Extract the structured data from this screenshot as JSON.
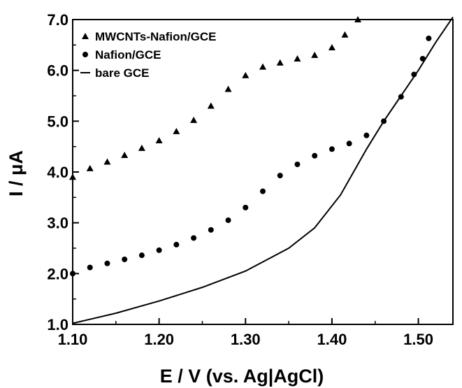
{
  "chart_data": {
    "type": "scatter",
    "title": "",
    "xlabel": "E / V (vs. Ag|AgCl)",
    "ylabel": "I / μA",
    "xlim": [
      1.1,
      1.54
    ],
    "ylim": [
      1.0,
      7.0
    ],
    "xticks": [
      "1.10",
      "1.20",
      "1.30",
      "1.40",
      "1.50"
    ],
    "yticks": [
      "1.0",
      "2.0",
      "3.0",
      "4.0",
      "5.0",
      "6.0",
      "7.0"
    ],
    "grid": false,
    "legend_position": "top-left",
    "series": [
      {
        "name": "MWCNTs-Nafion/GCE",
        "marker": "triangle",
        "points": [
          [
            1.1,
            3.9
          ],
          [
            1.12,
            4.07
          ],
          [
            1.14,
            4.2
          ],
          [
            1.16,
            4.33
          ],
          [
            1.18,
            4.47
          ],
          [
            1.2,
            4.62
          ],
          [
            1.22,
            4.8
          ],
          [
            1.24,
            5.02
          ],
          [
            1.26,
            5.3
          ],
          [
            1.28,
            5.63
          ],
          [
            1.3,
            5.9
          ],
          [
            1.32,
            6.07
          ],
          [
            1.34,
            6.15
          ],
          [
            1.36,
            6.23
          ],
          [
            1.38,
            6.3
          ],
          [
            1.4,
            6.45
          ],
          [
            1.415,
            6.7
          ],
          [
            1.43,
            7.0
          ]
        ]
      },
      {
        "name": "Nafion/GCE",
        "marker": "circle",
        "points": [
          [
            1.1,
            2.0
          ],
          [
            1.12,
            2.12
          ],
          [
            1.14,
            2.2
          ],
          [
            1.16,
            2.28
          ],
          [
            1.18,
            2.36
          ],
          [
            1.2,
            2.46
          ],
          [
            1.22,
            2.57
          ],
          [
            1.24,
            2.7
          ],
          [
            1.26,
            2.86
          ],
          [
            1.28,
            3.05
          ],
          [
            1.3,
            3.3
          ],
          [
            1.32,
            3.62
          ],
          [
            1.34,
            3.93
          ],
          [
            1.36,
            4.15
          ],
          [
            1.38,
            4.32
          ],
          [
            1.4,
            4.45
          ],
          [
            1.42,
            4.56
          ],
          [
            1.44,
            4.72
          ],
          [
            1.46,
            5.0
          ],
          [
            1.48,
            5.48
          ],
          [
            1.495,
            5.92
          ],
          [
            1.505,
            6.23
          ],
          [
            1.512,
            6.63
          ]
        ]
      },
      {
        "name": "bare GCE",
        "marker": "line",
        "points": [
          [
            1.1,
            1.02
          ],
          [
            1.15,
            1.22
          ],
          [
            1.2,
            1.46
          ],
          [
            1.25,
            1.73
          ],
          [
            1.3,
            2.05
          ],
          [
            1.35,
            2.5
          ],
          [
            1.38,
            2.9
          ],
          [
            1.41,
            3.55
          ],
          [
            1.44,
            4.45
          ],
          [
            1.46,
            5.0
          ],
          [
            1.48,
            5.5
          ],
          [
            1.5,
            6.0
          ],
          [
            1.52,
            6.55
          ],
          [
            1.54,
            7.05
          ]
        ]
      }
    ]
  }
}
